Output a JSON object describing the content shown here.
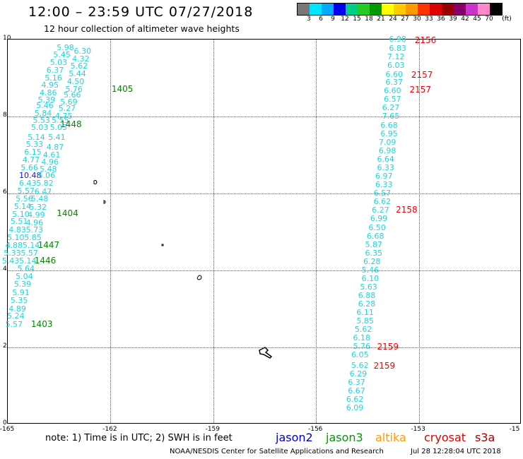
{
  "title": "12:00 – 23:59 UTC 07/27/2018",
  "subtitle": "12 hour collection of altimeter wave heights",
  "colorbar": {
    "colors": [
      "#777777",
      "#00e5ff",
      "#00aaff",
      "#0000ee",
      "#00cc88",
      "#22cc22",
      "#009900",
      "#ffff00",
      "#ffcc00",
      "#ff9900",
      "#ff3300",
      "#dd0000",
      "#990000",
      "#880066",
      "#cc33cc",
      "#ff88cc",
      "#000000"
    ],
    "labels": [
      "3",
      "6",
      "9",
      "12",
      "15",
      "18",
      "21",
      "24",
      "27",
      "30",
      "33",
      "36",
      "39",
      "42",
      "45",
      "70",
      "(ft)"
    ]
  },
  "axes": {
    "lon_ticks": [
      "-165",
      "-162",
      "-159",
      "-156",
      "-153",
      "-15"
    ],
    "lat_ticks": [
      "10",
      "8",
      "6",
      "4",
      "2",
      "0"
    ]
  },
  "map_data": {
    "lon_range": [
      -165,
      -150
    ],
    "lat_range": [
      0,
      10
    ],
    "observations_west": [
      {
        "lon": -163.55,
        "lat": 9.77,
        "v": "5.98"
      },
      {
        "lon": -163.05,
        "lat": 9.67,
        "v": "6.30"
      },
      {
        "lon": -163.65,
        "lat": 9.57,
        "v": "5.45"
      },
      {
        "lon": -163.1,
        "lat": 9.47,
        "v": "4.32"
      },
      {
        "lon": -163.75,
        "lat": 9.37,
        "v": "5.03"
      },
      {
        "lon": -163.15,
        "lat": 9.28,
        "v": "5.62"
      },
      {
        "lon": -163.85,
        "lat": 9.18,
        "v": "6.37"
      },
      {
        "lon": -163.2,
        "lat": 9.08,
        "v": "5.44"
      },
      {
        "lon": -163.9,
        "lat": 8.98,
        "v": "5.16"
      },
      {
        "lon": -163.25,
        "lat": 8.88,
        "v": "4.50"
      },
      {
        "lon": -164.0,
        "lat": 8.78,
        "v": "4.95"
      },
      {
        "lon": -163.3,
        "lat": 8.68,
        "v": "5.76"
      },
      {
        "lon": -164.05,
        "lat": 8.58,
        "v": "4.86"
      },
      {
        "lon": -163.35,
        "lat": 8.54,
        "v": "5.66"
      },
      {
        "lon": -164.1,
        "lat": 8.41,
        "v": "5.39"
      },
      {
        "lon": -163.45,
        "lat": 8.35,
        "v": "5.69"
      },
      {
        "lon": -164.15,
        "lat": 8.25,
        "v": "5.46"
      },
      {
        "lon": -163.5,
        "lat": 8.18,
        "v": "5.27"
      },
      {
        "lon": -164.2,
        "lat": 8.06,
        "v": "5.84"
      },
      {
        "lon": -163.6,
        "lat": 7.98,
        "v": "4.75"
      },
      {
        "lon": -164.25,
        "lat": 7.88,
        "v": "5.53"
      },
      {
        "lon": -163.7,
        "lat": 7.88,
        "v": "5.55"
      },
      {
        "lon": -164.3,
        "lat": 7.68,
        "v": "5.03"
      },
      {
        "lon": -163.75,
        "lat": 7.68,
        "v": "5.03"
      },
      {
        "lon": -164.4,
        "lat": 7.44,
        "v": "5.14"
      },
      {
        "lon": -163.8,
        "lat": 7.44,
        "v": "5.41"
      },
      {
        "lon": -164.45,
        "lat": 7.24,
        "v": "5.33"
      },
      {
        "lon": -163.85,
        "lat": 7.18,
        "v": "4.87"
      },
      {
        "lon": -164.5,
        "lat": 7.04,
        "v": "6.15"
      },
      {
        "lon": -163.95,
        "lat": 6.98,
        "v": "4.61"
      },
      {
        "lon": -164.55,
        "lat": 6.84,
        "v": "4.77"
      },
      {
        "lon": -164.0,
        "lat": 6.78,
        "v": "4.96"
      },
      {
        "lon": -164.6,
        "lat": 6.64,
        "v": "5.66"
      },
      {
        "lon": -164.05,
        "lat": 6.6,
        "v": "5.48"
      },
      {
        "lon": -164.65,
        "lat": 6.44,
        "v": "10.48",
        "hi": true
      },
      {
        "lon": -164.1,
        "lat": 6.44,
        "v": "5.06"
      },
      {
        "lon": -164.65,
        "lat": 6.24,
        "v": "6.43"
      },
      {
        "lon": -164.15,
        "lat": 6.24,
        "v": "5.82"
      },
      {
        "lon": -164.7,
        "lat": 6.04,
        "v": "5.57"
      },
      {
        "lon": -164.2,
        "lat": 6.02,
        "v": "6.47"
      },
      {
        "lon": -164.75,
        "lat": 5.84,
        "v": "5.56"
      },
      {
        "lon": -164.3,
        "lat": 5.84,
        "v": "5.48"
      },
      {
        "lon": -164.8,
        "lat": 5.64,
        "v": "5.14"
      },
      {
        "lon": -164.35,
        "lat": 5.62,
        "v": "5.32"
      },
      {
        "lon": -164.85,
        "lat": 5.44,
        "v": "5.10"
      },
      {
        "lon": -164.4,
        "lat": 5.42,
        "v": "4.99"
      },
      {
        "lon": -164.9,
        "lat": 5.24,
        "v": "5.51"
      },
      {
        "lon": -164.45,
        "lat": 5.22,
        "v": "4.96"
      },
      {
        "lon": -164.95,
        "lat": 5.02,
        "v": "4.83"
      },
      {
        "lon": -164.45,
        "lat": 5.02,
        "v": "5.73"
      },
      {
        "lon": -165.0,
        "lat": 4.82,
        "v": "5.10"
      },
      {
        "lon": -164.5,
        "lat": 4.82,
        "v": "5.85"
      },
      {
        "lon": -165.05,
        "lat": 4.62,
        "v": "4.88"
      },
      {
        "lon": -164.55,
        "lat": 4.62,
        "v": "5.14"
      },
      {
        "lon": -165.1,
        "lat": 4.42,
        "v": "5.33"
      },
      {
        "lon": -164.6,
        "lat": 4.42,
        "v": "5.57"
      },
      {
        "lon": -165.15,
        "lat": 4.22,
        "v": "5.43"
      },
      {
        "lon": -164.65,
        "lat": 4.22,
        "v": "5.14"
      },
      {
        "lon": -164.7,
        "lat": 4.02,
        "v": "5.64"
      },
      {
        "lon": -164.75,
        "lat": 3.82,
        "v": "5.04"
      },
      {
        "lon": -164.8,
        "lat": 3.62,
        "v": "5.39"
      },
      {
        "lon": -164.85,
        "lat": 3.4,
        "v": "5.91"
      },
      {
        "lon": -164.9,
        "lat": 3.2,
        "v": "5.35"
      },
      {
        "lon": -164.95,
        "lat": 2.98,
        "v": "4.89"
      },
      {
        "lon": -165.0,
        "lat": 2.78,
        "v": "5.24"
      },
      {
        "lon": -165.05,
        "lat": 2.56,
        "v": "5.57"
      }
    ],
    "observations_east": [
      {
        "lon": -153.85,
        "lat": 9.98,
        "v": "6.98"
      },
      {
        "lon": -153.85,
        "lat": 9.75,
        "v": "6.83"
      },
      {
        "lon": -153.9,
        "lat": 9.52,
        "v": "7.12"
      },
      {
        "lon": -153.9,
        "lat": 9.3,
        "v": "6.03"
      },
      {
        "lon": -153.95,
        "lat": 9.07,
        "v": "6.60"
      },
      {
        "lon": -153.95,
        "lat": 8.86,
        "v": "6.37"
      },
      {
        "lon": -154.0,
        "lat": 8.65,
        "v": "6.60"
      },
      {
        "lon": -154.0,
        "lat": 8.42,
        "v": "6.57"
      },
      {
        "lon": -154.05,
        "lat": 8.2,
        "v": "6.27"
      },
      {
        "lon": -154.05,
        "lat": 7.98,
        "v": "7.65"
      },
      {
        "lon": -154.1,
        "lat": 7.75,
        "v": "6.68"
      },
      {
        "lon": -154.1,
        "lat": 7.53,
        "v": "6.95"
      },
      {
        "lon": -154.15,
        "lat": 7.31,
        "v": "7.09"
      },
      {
        "lon": -154.15,
        "lat": 7.09,
        "v": "6.98"
      },
      {
        "lon": -154.2,
        "lat": 6.87,
        "v": "6.64"
      },
      {
        "lon": -154.2,
        "lat": 6.64,
        "v": "6.33"
      },
      {
        "lon": -154.25,
        "lat": 6.42,
        "v": "6.97"
      },
      {
        "lon": -154.25,
        "lat": 6.2,
        "v": "6.33"
      },
      {
        "lon": -154.3,
        "lat": 5.98,
        "v": "6.57"
      },
      {
        "lon": -154.3,
        "lat": 5.76,
        "v": "6.62"
      },
      {
        "lon": -154.35,
        "lat": 5.54,
        "v": "6.27"
      },
      {
        "lon": -154.4,
        "lat": 5.32,
        "v": "6.99"
      },
      {
        "lon": -154.45,
        "lat": 5.09,
        "v": "6.50"
      },
      {
        "lon": -154.5,
        "lat": 4.87,
        "v": "6.68"
      },
      {
        "lon": -154.55,
        "lat": 4.65,
        "v": "5.87"
      },
      {
        "lon": -154.55,
        "lat": 4.43,
        "v": "6.35"
      },
      {
        "lon": -154.6,
        "lat": 4.21,
        "v": "6.28"
      },
      {
        "lon": -154.65,
        "lat": 3.99,
        "v": "5.46"
      },
      {
        "lon": -154.65,
        "lat": 3.77,
        "v": "6.10"
      },
      {
        "lon": -154.7,
        "lat": 3.55,
        "v": "5.63"
      },
      {
        "lon": -154.75,
        "lat": 3.33,
        "v": "6.88"
      },
      {
        "lon": -154.75,
        "lat": 3.1,
        "v": "6.28"
      },
      {
        "lon": -154.8,
        "lat": 2.88,
        "v": "6.11"
      },
      {
        "lon": -154.8,
        "lat": 2.66,
        "v": "5.85"
      },
      {
        "lon": -154.85,
        "lat": 2.44,
        "v": "5.62"
      },
      {
        "lon": -154.9,
        "lat": 2.22,
        "v": "6.18"
      },
      {
        "lon": -154.9,
        "lat": 2.0,
        "v": "5.76"
      },
      {
        "lon": -154.95,
        "lat": 1.78,
        "v": "6.05"
      },
      {
        "lon": -154.95,
        "lat": 1.5,
        "v": "5.62"
      },
      {
        "lon": -155.0,
        "lat": 1.28,
        "v": "6.29"
      },
      {
        "lon": -155.05,
        "lat": 1.06,
        "v": "6.37"
      },
      {
        "lon": -155.05,
        "lat": 0.84,
        "v": "6.67"
      },
      {
        "lon": -155.1,
        "lat": 0.62,
        "v": "6.62"
      },
      {
        "lon": -155.1,
        "lat": 0.4,
        "v": "6.09"
      }
    ],
    "time_labels": [
      {
        "lon": -161.95,
        "lat": 8.7,
        "v": "1405",
        "color": "#008800"
      },
      {
        "lon": -163.45,
        "lat": 7.78,
        "v": "1448",
        "color": "#008800"
      },
      {
        "lon": -163.55,
        "lat": 5.46,
        "v": "1404",
        "color": "#008800"
      },
      {
        "lon": -164.1,
        "lat": 4.64,
        "v": "1447",
        "color": "#008800"
      },
      {
        "lon": -164.2,
        "lat": 4.24,
        "v": "1446",
        "color": "#008800"
      },
      {
        "lon": -164.3,
        "lat": 2.58,
        "v": "1403",
        "color": "#008800"
      },
      {
        "lon": -153.1,
        "lat": 9.97,
        "v": "2156",
        "color": "#ee0000"
      },
      {
        "lon": -153.2,
        "lat": 9.07,
        "v": "2157",
        "color": "#ee0000"
      },
      {
        "lon": -153.25,
        "lat": 8.67,
        "v": "2157",
        "color": "#ee0000"
      },
      {
        "lon": -153.65,
        "lat": 5.56,
        "v": "2158",
        "color": "#ee0000"
      },
      {
        "lon": -154.2,
        "lat": 2.0,
        "v": "2159",
        "color": "#ee0000"
      },
      {
        "lon": -154.3,
        "lat": 1.5,
        "v": "2159",
        "color": "#ee0000"
      }
    ]
  },
  "note": "note:  1) Time is in UTC;  2) SWH is in feet",
  "legend": [
    {
      "label": "jason2",
      "color": "#0000cc"
    },
    {
      "label": "jason3",
      "color": "#009900"
    },
    {
      "label": "altika",
      "color": "#ff9900"
    },
    {
      "label": "cryosat",
      "color": "#dd0000"
    },
    {
      "label": "s3a",
      "color": "#990000"
    }
  ],
  "credit": "NOAA/NESDIS Center for Satellite Applications and Research",
  "timestamp": "Jul 28 12:28:04 UTC 2018"
}
